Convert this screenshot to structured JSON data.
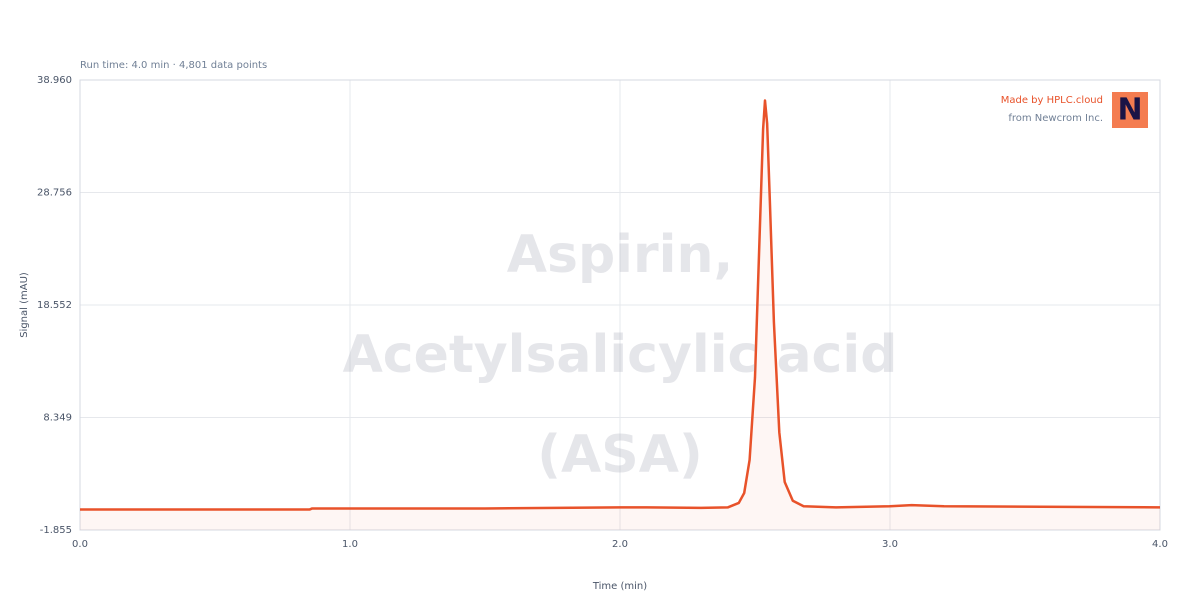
{
  "chart_data": {
    "type": "line",
    "title": "Aspirin, Acetylsalicylic acid (ASA)",
    "subtitle": "Run time: 4.0 min · 4,801 data points",
    "x_label": "Time (min)",
    "y_label": "Signal (mAU)",
    "branding": {
      "made_by": "Made by HPLC.cloud",
      "from": "from Newcrom Inc.",
      "logo": "N"
    },
    "x": [
      0.0,
      0.85,
      0.86,
      1.5,
      2.0,
      2.1,
      2.3,
      2.4,
      2.44,
      2.46,
      2.48,
      2.5,
      2.52,
      2.53,
      2.537,
      2.545,
      2.555,
      2.57,
      2.59,
      2.61,
      2.64,
      2.68,
      2.8,
      3.0,
      3.08,
      3.2,
      4.0
    ],
    "series": [
      {
        "name": "Signal",
        "color": "#e8522a",
        "values": [
          0.0,
          0.0,
          0.1,
          0.1,
          0.2,
          0.2,
          0.15,
          0.2,
          0.6,
          1.5,
          4.5,
          12,
          27,
          34.5,
          37.1,
          35,
          28,
          17,
          7,
          2.5,
          0.8,
          0.3,
          0.2,
          0.3,
          0.4,
          0.3,
          0.2
        ]
      }
    ],
    "xlim": [
      0,
      4
    ],
    "xticks": [
      {
        "value": 0,
        "label": "0.0"
      },
      {
        "value": 1,
        "label": "1.0"
      },
      {
        "value": 2,
        "label": "2.0"
      },
      {
        "value": 3,
        "label": "3.0"
      },
      {
        "value": 4,
        "label": "4.0"
      }
    ],
    "ylim": [
      -1.855,
      38.96
    ],
    "yticks": [
      -1.855,
      8.349,
      18.552,
      28.756,
      {
        "value": 38.96,
        "label": "38.960"
      }
    ],
    "grid": true
  }
}
